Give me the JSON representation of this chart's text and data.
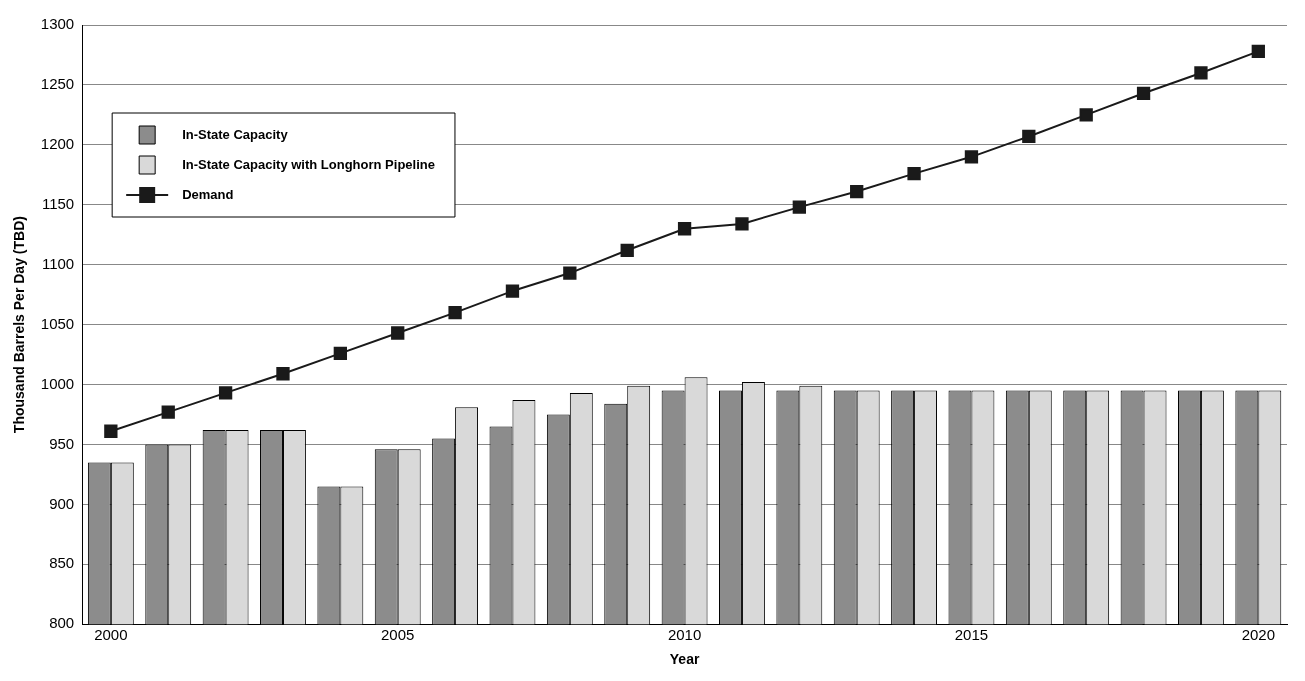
{
  "chart_data": {
    "type": "bar",
    "xlabel": "Year",
    "ylabel": "Thousand Barrels Per Day (TBD)",
    "categories": [
      "2000",
      null,
      null,
      null,
      null,
      "2005",
      null,
      null,
      null,
      null,
      "2010",
      null,
      null,
      null,
      null,
      "2015",
      null,
      null,
      null,
      null,
      "2020"
    ],
    "series": [
      {
        "name": "In-State Capacity",
        "color": "#8c8c8c",
        "values": [
          935,
          950,
          962,
          962,
          915,
          946,
          955,
          965,
          975,
          984,
          995,
          995,
          995,
          995,
          995,
          995,
          995,
          995,
          995,
          995,
          995
        ]
      },
      {
        "name": "In-State Capacity with Longhorn Pipeline",
        "color": "#d9d9d9",
        "values": [
          935,
          950,
          962,
          962,
          915,
          946,
          981,
          987,
          993,
          999,
          1006,
          1002,
          999,
          995,
          995,
          995,
          995,
          995,
          995,
          995,
          995
        ]
      },
      {
        "name": "Demand",
        "type": "line",
        "color": "#1a1a1a",
        "values": [
          961,
          977,
          993,
          1009,
          1026,
          1043,
          1060,
          1078,
          1093,
          1112,
          1130,
          1134,
          1148,
          1161,
          1176,
          1190,
          1207,
          1225,
          1243,
          1260,
          1278
        ]
      }
    ],
    "ylim": [
      800,
      1300
    ],
    "yticks": [
      800,
      850,
      900,
      950,
      1000,
      1050,
      1100,
      1150,
      1200,
      1250,
      1300
    ],
    "grid": "y",
    "legend": "top left",
    "marker": "square",
    "line_style": "solid"
  }
}
